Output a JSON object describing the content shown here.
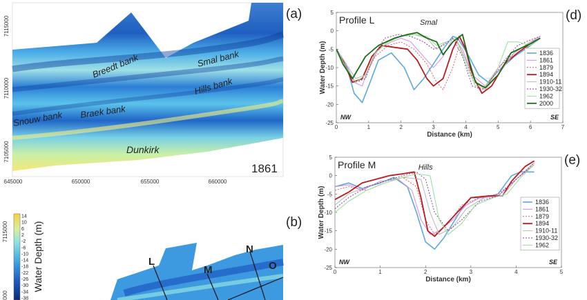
{
  "map_a": {
    "panel_letter": "(a)",
    "year": "1861",
    "x_ticks": [
      "645000",
      "650000",
      "655000",
      "660000"
    ],
    "y_ticks": [
      "7115000",
      "7110000",
      "7105000"
    ],
    "labels": {
      "breedt": "Breedt bank",
      "smal": "Smal bank",
      "hills": "Hills bank",
      "snouw": "Snouw bank",
      "braek": "Braek bank",
      "dunkirk": "Dunkirk"
    }
  },
  "map_b": {
    "panel_letter": "(b)",
    "y_ticks": [
      "7115000",
      "000"
    ],
    "colorbar": {
      "title": "Water Depth (m)",
      "ticks": [
        "14",
        "10",
        "6",
        "2",
        "-2",
        "-6",
        "-10",
        "-14",
        "-18",
        "-22",
        "-26",
        "-30",
        "-34",
        "-38"
      ]
    },
    "profile_labels": [
      "L",
      "M",
      "N",
      "O"
    ]
  },
  "colors": {
    "1836": "#5aa9dd",
    "1861": "#d98be0",
    "1879": "#e05c5c",
    "1894": "#c0161c",
    "1910-11": "#b8b8b8",
    "1930-32": "#8a3aa0",
    "1962": "#8fe08f",
    "2000": "#1a6b1a"
  },
  "chart_data": [
    {
      "type": "line",
      "panel_letter": "(d)",
      "title": "Profile L",
      "annotation": "Smal",
      "corner_left": "NW",
      "corner_right": "SE",
      "xlabel": "Distance (km)",
      "ylabel": "Water Depth (m)",
      "xlim": [
        0,
        7
      ],
      "ylim": [
        -25,
        5
      ],
      "x_ticks": [
        0,
        1,
        2,
        3,
        4,
        5,
        6,
        7
      ],
      "y_ticks": [
        5,
        0,
        -5,
        -10,
        -15,
        -20,
        -25
      ],
      "series": [
        {
          "name": "1836",
          "dash": "solid",
          "width": 1.6,
          "x": [
            0,
            0.3,
            0.55,
            0.8,
            1.0,
            1.3,
            1.7,
            2.1,
            2.4,
            2.7,
            3.0,
            3.3,
            3.6,
            3.75,
            3.9,
            4.1,
            4.4,
            4.7,
            5.0,
            5.5,
            6.0,
            6.3
          ],
          "y": [
            -5,
            -9,
            -17,
            -19.5,
            -15,
            -8,
            -6,
            -10,
            -16,
            -13,
            -9,
            -5,
            -1.5,
            -2,
            -4,
            -7,
            -12,
            -14,
            -11,
            -7,
            -4,
            -2
          ]
        },
        {
          "name": "1861",
          "dash": "solid",
          "width": 1.0,
          "x": [
            0,
            0.3,
            0.55,
            0.8,
            1.0,
            1.3,
            1.7,
            2.0,
            2.3,
            2.6,
            3.0,
            3.3,
            3.6,
            3.9,
            4.2,
            4.6,
            5.0,
            5.5,
            6.0,
            6.3
          ],
          "y": [
            -5,
            -9,
            -14,
            -15,
            -10,
            -5,
            -3,
            -2,
            -3,
            -6,
            -10,
            -7,
            -2,
            -5,
            -12,
            -15,
            -11,
            -6,
            -3,
            -1.5
          ]
        },
        {
          "name": "1879",
          "dash": "dot",
          "width": 1.0,
          "x": [
            0,
            0.3,
            0.6,
            0.9,
            1.2,
            1.6,
            2.0,
            2.4,
            2.8,
            3.1,
            3.3,
            3.6,
            3.8,
            4.0,
            4.3,
            4.6,
            5.0,
            5.5,
            6.0,
            6.3
          ],
          "y": [
            -5,
            -10,
            -14,
            -12,
            -7,
            -4,
            -3,
            -5,
            -9,
            -14,
            -16,
            -10,
            -4,
            -8,
            -15,
            -16,
            -10,
            -6,
            -3,
            -2
          ]
        },
        {
          "name": "1894",
          "dash": "solid",
          "width": 1.8,
          "x": [
            0,
            0.2,
            0.5,
            0.8,
            1.1,
            1.4,
            1.8,
            2.2,
            2.5,
            2.8,
            3.0,
            3.3,
            3.6,
            3.8,
            4.0,
            4.2,
            4.5,
            4.8,
            5.2,
            5.6,
            6.0,
            6.3
          ],
          "y": [
            -5,
            -8,
            -14,
            -13,
            -7,
            -4,
            -4.5,
            -5,
            -8,
            -13,
            -15,
            -13,
            -5,
            -1.5,
            -5,
            -12,
            -17,
            -15,
            -9,
            -6,
            -3.5,
            -2
          ]
        },
        {
          "name": "1910-11",
          "dash": "solid",
          "width": 1.0,
          "x": [
            0,
            0.3,
            0.6,
            0.9,
            1.2,
            1.6,
            2.0,
            2.4,
            2.8,
            3.1,
            3.4,
            3.7,
            4.0,
            4.3,
            4.6,
            5.0,
            5.5,
            6.0,
            6.3
          ],
          "y": [
            -5,
            -9,
            -13,
            -12,
            -6,
            -3,
            -1.5,
            -1,
            -2,
            -5,
            -3,
            -2,
            -8,
            -14,
            -16,
            -12,
            -6,
            -3,
            -2
          ]
        },
        {
          "name": "1930-32",
          "dash": "dot",
          "width": 1.0,
          "x": [
            0,
            0.3,
            0.6,
            0.9,
            1.2,
            1.5,
            1.9,
            2.3,
            2.7,
            3.0,
            3.3,
            3.6,
            3.9,
            4.2,
            4.5,
            4.8,
            5.2,
            5.6,
            6.0,
            6.3
          ],
          "y": [
            -5,
            -10,
            -14,
            -13,
            -6,
            -2,
            -1,
            -1.5,
            -3,
            -5,
            -4,
            -2,
            -7,
            -15,
            -16,
            -13,
            -8,
            -4,
            -2.5,
            -1.5
          ]
        },
        {
          "name": "1962",
          "dash": "solid",
          "width": 1.0,
          "x": [
            0,
            0.3,
            0.6,
            0.9,
            1.2,
            1.6,
            2.0,
            2.4,
            2.8,
            3.1,
            3.4,
            3.7,
            4.0,
            4.3,
            4.6,
            5.0,
            5.3,
            5.6,
            6.0,
            6.3
          ],
          "y": [
            -5,
            -10,
            -14,
            -12,
            -6,
            -3,
            -1.5,
            -1,
            -1.5,
            -4,
            -3,
            -2,
            -9,
            -15,
            -15,
            -10,
            -3,
            -3,
            -4,
            -2
          ]
        },
        {
          "name": "2000",
          "dash": "solid",
          "width": 1.8,
          "x": [
            0,
            0.2,
            0.5,
            0.9,
            1.3,
            1.8,
            2.2,
            2.5,
            2.8,
            3.1,
            3.3,
            3.6,
            3.9,
            4.1,
            4.3,
            4.6,
            5.0,
            5.4,
            6.0,
            6.3
          ],
          "y": [
            -5,
            -9,
            -13,
            -7,
            -4,
            -2,
            -1,
            -0.5,
            -2,
            -3,
            -6.5,
            -3,
            -1,
            -8,
            -14,
            -15.5,
            -12,
            -6,
            -3.5,
            -2
          ]
        }
      ]
    },
    {
      "type": "line",
      "panel_letter": "(e)",
      "title": "Profile M",
      "annotation": "Hills",
      "corner_left": "NW",
      "corner_right": "SE",
      "xlabel": "Distance (km)",
      "ylabel": "Water Depth (m)",
      "xlim": [
        0,
        5
      ],
      "ylim": [
        -25,
        5
      ],
      "x_ticks": [
        0,
        1,
        2,
        3,
        4,
        5
      ],
      "y_ticks": [
        5,
        0,
        -5,
        -10,
        -15,
        -20,
        -25
      ],
      "series": [
        {
          "name": "1836",
          "dash": "solid",
          "width": 1.6,
          "x": [
            0,
            0.3,
            0.6,
            1.0,
            1.3,
            1.6,
            1.8,
            2.0,
            2.2,
            2.4,
            2.6,
            2.8,
            3.0,
            3.3,
            3.6,
            3.9,
            4.1,
            4.4
          ],
          "y": [
            -3,
            -2,
            -3.5,
            -2,
            -0.5,
            -3,
            -10,
            -18,
            -20,
            -17,
            -13,
            -9,
            -6,
            -6,
            -5,
            0,
            1,
            1
          ]
        },
        {
          "name": "1861",
          "dash": "solid",
          "width": 1.0,
          "x": [
            0,
            0.3,
            0.6,
            1.0,
            1.4,
            1.7,
            1.9,
            2.1,
            2.3,
            2.6,
            2.9,
            3.2,
            3.6,
            4.0,
            4.4
          ],
          "y": [
            -3,
            -2.5,
            -4,
            -1.5,
            -1,
            -4,
            -12,
            -16,
            -15,
            -12,
            -8,
            -6,
            -5.5,
            -1,
            3
          ]
        },
        {
          "name": "1879",
          "dash": "dot",
          "width": 1.0,
          "x": [
            0,
            0.3,
            0.7,
            1.1,
            1.5,
            1.8,
            2.0,
            2.2,
            2.5,
            2.8,
            3.2,
            3.6,
            4.0,
            4.4
          ],
          "y": [
            -4,
            -3,
            -4,
            -2,
            -0.5,
            -3,
            -12,
            -16,
            -13,
            -8,
            -6,
            -5,
            -1,
            3
          ]
        },
        {
          "name": "1894",
          "dash": "solid",
          "width": 1.8,
          "x": [
            0,
            0.3,
            0.6,
            0.9,
            1.2,
            1.5,
            1.75,
            1.9,
            2.05,
            2.2,
            2.4,
            2.7,
            3.0,
            3.4,
            3.7,
            3.9,
            4.2,
            4.4
          ],
          "y": [
            -6.5,
            -4.5,
            -2,
            -1,
            0,
            0.5,
            1,
            -6,
            -15,
            -16.5,
            -14,
            -10,
            -6,
            -5.5,
            -5.5,
            -1.5,
            2.5,
            4
          ]
        },
        {
          "name": "1910-11",
          "dash": "solid",
          "width": 1.0,
          "x": [
            0,
            0.3,
            0.7,
            1.1,
            1.5,
            1.9,
            2.1,
            2.3,
            2.6,
            2.9,
            3.3,
            3.7,
            4.0,
            4.4
          ],
          "y": [
            -8,
            -5,
            -3,
            -1.5,
            -0.5,
            -1,
            -10,
            -16,
            -14,
            -9,
            -6,
            -5.5,
            -1,
            3.5
          ]
        },
        {
          "name": "1930-32",
          "dash": "dot",
          "width": 1.0,
          "x": [
            0,
            0.3,
            0.7,
            1.1,
            1.5,
            1.8,
            2.0,
            2.2,
            2.5,
            2.8,
            3.2,
            3.6,
            4.0,
            4.4
          ],
          "y": [
            -9,
            -6,
            -3,
            -1.5,
            0,
            1,
            -1,
            -10,
            -15,
            -12,
            -7,
            -5.5,
            -1,
            3.5
          ]
        },
        {
          "name": "1962",
          "dash": "solid",
          "width": 1.0,
          "x": [
            0,
            0.3,
            0.7,
            1.1,
            1.5,
            1.8,
            2.1,
            2.3,
            2.5,
            2.8,
            3.1,
            3.5,
            3.8,
            4.1,
            4.4
          ],
          "y": [
            -10,
            -7,
            -4,
            -2,
            -0.5,
            0.5,
            0,
            -12,
            -16,
            -13,
            -8,
            -6,
            -5,
            -0.5,
            3
          ]
        }
      ]
    }
  ]
}
